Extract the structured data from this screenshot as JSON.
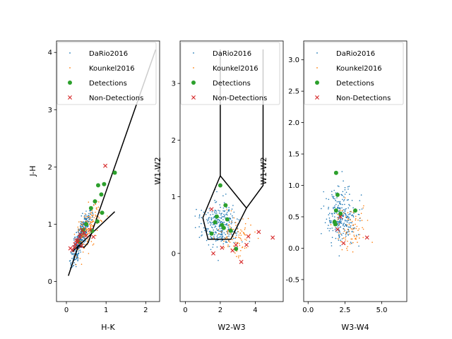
{
  "colors": {
    "dario": "#1f77b4",
    "kounkel": "#ff7f0e",
    "det": "#2ca02c",
    "nondet": "#d62728",
    "line": "#000000"
  },
  "legend_labels": [
    "DaRio2016",
    "Kounkel2016",
    "Detections",
    "Non-Detections"
  ],
  "chart_data": [
    {
      "type": "scatter",
      "xlabel": "H-K",
      "ylabel": "J-H",
      "xlim": [
        -0.25,
        2.35
      ],
      "ylim": [
        -0.35,
        4.2
      ],
      "xticks": [
        0,
        1,
        2
      ],
      "yticks": [
        0,
        1,
        2,
        3,
        4
      ],
      "legend": "upper-left",
      "cloud_params": {
        "dario": {
          "n": 420,
          "center": [
            0.35,
            0.75
          ],
          "axis": [
            0.45,
            1.0
          ],
          "spread": [
            0.45,
            0.09
          ]
        },
        "kounkel": {
          "n": 140,
          "center": [
            0.55,
            0.95
          ],
          "axis": [
            0.5,
            0.95
          ],
          "spread": [
            0.45,
            0.18
          ]
        }
      },
      "detections": [
        [
          0.62,
          1.28
        ],
        [
          0.8,
          1.68
        ],
        [
          0.95,
          1.7
        ],
        [
          0.72,
          1.4
        ],
        [
          0.88,
          1.52
        ],
        [
          1.22,
          1.9
        ],
        [
          0.5,
          1.0
        ],
        [
          0.42,
          0.9
        ],
        [
          0.9,
          1.2
        ],
        [
          0.78,
          1.05
        ],
        [
          0.3,
          0.7
        ],
        [
          0.65,
          0.88
        ]
      ],
      "non_detections": [
        [
          0.3,
          0.72
        ],
        [
          0.35,
          0.82
        ],
        [
          0.28,
          0.68
        ],
        [
          0.4,
          0.9
        ],
        [
          0.22,
          0.65
        ],
        [
          0.2,
          0.6
        ],
        [
          0.45,
          0.85
        ],
        [
          0.33,
          0.78
        ],
        [
          0.25,
          0.72
        ],
        [
          0.38,
          0.62
        ],
        [
          0.5,
          0.8
        ],
        [
          0.6,
          0.9
        ],
        [
          0.68,
          0.78
        ],
        [
          0.98,
          2.02
        ],
        [
          0.15,
          0.55
        ],
        [
          0.1,
          0.58
        ]
      ],
      "lines": [
        [
          [
            0.05,
            0.1
          ],
          [
            0.3,
            0.62
          ],
          [
            0.45,
            0.6
          ],
          [
            0.55,
            0.68
          ],
          [
            2.25,
            4.05
          ]
        ],
        [
          [
            0.15,
            0.52
          ],
          [
            1.22,
            1.22
          ]
        ]
      ]
    },
    {
      "type": "scatter",
      "xlabel": "W2-W3",
      "ylabel": "W1-W2",
      "xlim": [
        -0.3,
        5.6
      ],
      "ylim": [
        -0.85,
        3.75
      ],
      "xticks": [
        0,
        2,
        4
      ],
      "yticks": [
        0,
        1,
        2,
        3
      ],
      "legend": "upper-left",
      "cloud_params": {
        "dario": {
          "n": 300,
          "center": [
            2.0,
            0.5
          ],
          "axis": [
            1.0,
            0.0
          ],
          "spread": [
            0.9,
            0.35
          ]
        },
        "kounkel": {
          "n": 90,
          "center": [
            3.0,
            0.3
          ],
          "axis": [
            1.0,
            0.0
          ],
          "spread": [
            0.9,
            0.3
          ]
        }
      },
      "detections": [
        [
          2.0,
          1.2
        ],
        [
          2.3,
          0.85
        ],
        [
          1.7,
          0.55
        ],
        [
          2.1,
          0.5
        ],
        [
          2.4,
          0.6
        ],
        [
          1.8,
          0.65
        ],
        [
          2.6,
          0.4
        ],
        [
          2.9,
          0.08
        ],
        [
          2.2,
          0.45
        ],
        [
          1.5,
          0.35
        ]
      ],
      "non_detections": [
        [
          1.5,
          0.78
        ],
        [
          2.1,
          0.1
        ],
        [
          1.6,
          0.0
        ],
        [
          2.7,
          0.05
        ],
        [
          3.2,
          -0.15
        ],
        [
          3.5,
          0.15
        ],
        [
          4.2,
          0.38
        ],
        [
          5.0,
          0.28
        ],
        [
          2.9,
          0.15
        ],
        [
          3.6,
          0.3
        ]
      ],
      "lines": [
        [
          [
            1.0,
            0.63
          ],
          [
            1.3,
            0.25
          ],
          [
            2.6,
            0.25
          ],
          [
            3.5,
            0.8
          ],
          [
            2.0,
            1.37
          ],
          [
            1.0,
            0.63
          ]
        ],
        [
          [
            2.0,
            1.37
          ],
          [
            2.0,
            3.6
          ]
        ],
        [
          [
            3.5,
            0.8
          ],
          [
            4.45,
            1.2
          ],
          [
            4.45,
            3.6
          ]
        ]
      ]
    },
    {
      "type": "scatter",
      "xlabel": "W3-W4",
      "ylabel": "W1-W2",
      "xlim": [
        -0.3,
        6.7
      ],
      "ylim": [
        -0.85,
        3.3
      ],
      "xticks": [
        0.0,
        2.5,
        5.0
      ],
      "yticks": [
        -0.5,
        0.0,
        0.5,
        1.0,
        1.5,
        2.0,
        2.5,
        3.0
      ],
      "tick_decimals": 1,
      "legend": "upper-left",
      "cloud_params": {
        "dario": {
          "n": 260,
          "center": [
            2.3,
            0.5
          ],
          "axis": [
            1.0,
            0.0
          ],
          "spread": [
            0.9,
            0.38
          ]
        },
        "kounkel": {
          "n": 80,
          "center": [
            3.0,
            0.3
          ],
          "axis": [
            1.0,
            0.0
          ],
          "spread": [
            1.0,
            0.3
          ]
        }
      },
      "detections": [
        [
          1.9,
          1.2
        ],
        [
          2.0,
          0.85
        ],
        [
          1.9,
          0.6
        ],
        [
          3.2,
          0.6
        ],
        [
          1.8,
          0.42
        ],
        [
          1.85,
          0.38
        ],
        [
          2.2,
          0.55
        ]
      ],
      "non_detections": [
        [
          2.2,
          0.5
        ],
        [
          2.4,
          0.08
        ],
        [
          4.0,
          0.17
        ],
        [
          2.0,
          0.3
        ]
      ],
      "lines": []
    }
  ]
}
